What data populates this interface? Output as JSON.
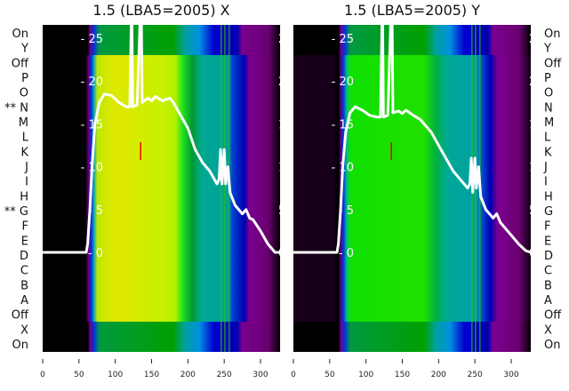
{
  "chart_data": [
    {
      "type": "line",
      "title": "1.5 (LBA5=2005) X",
      "xlim": [
        0,
        327
      ],
      "ylim": [
        -11.5,
        26.5
      ],
      "xticks": [
        0,
        50,
        100,
        150,
        200,
        250,
        300
      ],
      "yticks": [
        0,
        5,
        10,
        15,
        20,
        25
      ],
      "x": [
        0,
        60,
        62,
        65,
        68,
        72,
        78,
        85,
        95,
        105,
        115,
        120,
        122,
        123,
        124,
        130,
        134,
        135,
        136,
        137,
        145,
        150,
        155,
        165,
        175,
        180,
        190,
        200,
        210,
        220,
        230,
        240,
        243,
        245,
        247,
        250,
        252,
        255,
        258,
        265,
        275,
        280,
        285,
        290,
        300,
        310,
        320,
        327
      ],
      "y": [
        0,
        0,
        1,
        5,
        10,
        15,
        17.5,
        18.5,
        18.3,
        17.5,
        17,
        17,
        27,
        27,
        17,
        17.2,
        27,
        27,
        27,
        17.5,
        18,
        17.7,
        18.2,
        17.7,
        18,
        17.5,
        16,
        14.5,
        12,
        10.5,
        9.5,
        8,
        8.5,
        12,
        8,
        12,
        8,
        10,
        7,
        5.5,
        4.5,
        5,
        4,
        3.8,
        2.5,
        1,
        0,
        0
      ]
    },
    {
      "type": "line",
      "title": "1.5 (LBA5=2005) Y",
      "xlim": [
        0,
        327
      ],
      "ylim": [
        -11.5,
        26.5
      ],
      "xticks": [
        0,
        50,
        100,
        150,
        200,
        250,
        300
      ],
      "yticks": [
        0,
        5,
        10,
        15,
        20,
        25
      ],
      "x": [
        0,
        60,
        62,
        65,
        68,
        72,
        78,
        85,
        95,
        105,
        115,
        120,
        122,
        123,
        124,
        130,
        134,
        135,
        136,
        137,
        145,
        150,
        155,
        165,
        175,
        180,
        190,
        200,
        210,
        220,
        230,
        240,
        243,
        245,
        247,
        250,
        252,
        255,
        258,
        265,
        275,
        280,
        285,
        290,
        300,
        310,
        320,
        327
      ],
      "y": [
        0,
        0,
        1,
        5,
        10,
        14,
        16.3,
        17,
        16.6,
        16,
        15.8,
        15.8,
        27,
        27,
        15.8,
        16,
        27,
        27,
        27,
        16.3,
        16.5,
        16.2,
        16.6,
        16,
        15.5,
        15,
        14,
        12.5,
        11,
        9.5,
        8.5,
        7.5,
        8,
        11,
        7,
        11,
        7.5,
        10,
        6.5,
        5,
        4,
        4.5,
        3.5,
        3,
        2,
        1,
        0.2,
        0
      ]
    }
  ],
  "row_labels_left": [
    "On",
    "Y",
    "Off",
    "P",
    "O",
    "** N",
    "M",
    "L",
    "K",
    "J",
    "I",
    "H",
    "** G",
    "F",
    "E",
    "D",
    "C",
    "B",
    "A",
    "Off",
    "X",
    "On"
  ],
  "row_labels_right": [
    "On",
    "Y",
    "Off",
    "P",
    "O",
    "N",
    "M",
    "L",
    "K",
    "J",
    "I",
    "H",
    "G",
    "F",
    "E",
    "D",
    "C",
    "B",
    "A",
    "Off",
    "X",
    "On"
  ]
}
